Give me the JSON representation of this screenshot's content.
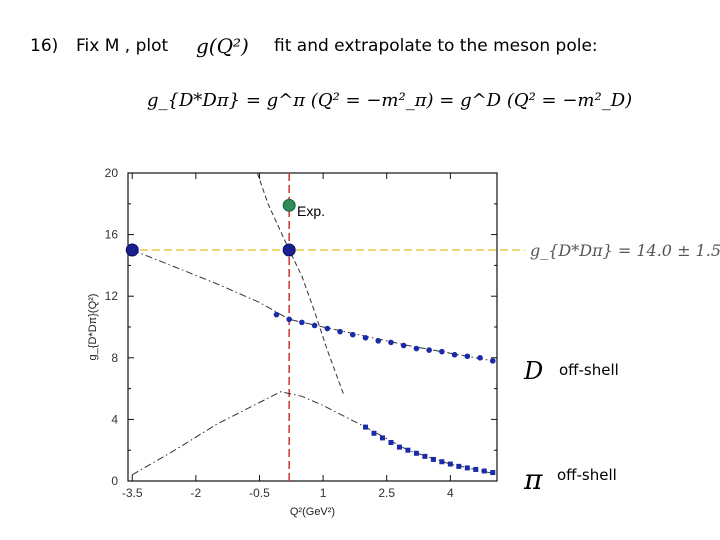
{
  "heading": {
    "number": "16)",
    "text_a": "Fix M , plot",
    "formula_g": "g(Q²)",
    "text_b": "fit  and  extrapolate to the meson pole:"
  },
  "equation": "g_{D*Dπ} = g^π (Q² = −m²_π) = g^D (Q² = −m²_D)",
  "result": "g_{D*Dπ} = 14.0 ± 1.5",
  "labels": {
    "exp": "Exp.",
    "d_symbol": "D",
    "d_offshell": "off-shell",
    "pi_symbol": "π",
    "pi_offshell": "off-shell"
  },
  "chart_data": {
    "type": "scatter",
    "xlabel": "Q²(GeV²)",
    "ylabel": "g_{D*Dπ}(Q²)",
    "xlim": [
      -3.6,
      5.1
    ],
    "ylim": [
      0,
      20
    ],
    "x_ticks": [
      -3.5,
      -2,
      -0.5,
      1,
      2.5,
      4
    ],
    "x_tick_labels": [
      "-3.5",
      "-2",
      "-0.5",
      "1",
      "2.5",
      "4"
    ],
    "y_ticks": [
      0,
      4,
      8,
      12,
      16,
      20
    ],
    "y_tick_labels": [
      "0",
      "4",
      "8",
      "12",
      "16",
      "20"
    ],
    "reference_lines": {
      "horizontal_y": 15.0,
      "vertical_x": 0.2
    },
    "series": [
      {
        "markers": "dots",
        "x": [
          -0.1,
          0.2,
          0.5,
          0.8,
          1.1,
          1.4,
          1.7,
          2.0,
          2.3,
          2.6,
          2.9,
          3.2,
          3.5,
          3.8,
          4.1,
          4.4,
          4.7,
          5.0
        ],
        "y": [
          10.8,
          10.5,
          10.3,
          10.1,
          9.9,
          9.7,
          9.5,
          9.3,
          9.1,
          9.0,
          8.8,
          8.6,
          8.5,
          8.4,
          8.2,
          8.1,
          8.0,
          7.8
        ]
      },
      {
        "markers": "squares",
        "x": [
          2.0,
          2.2,
          2.4,
          2.6,
          2.8,
          3.0,
          3.2,
          3.4,
          3.6,
          3.8,
          4.0,
          4.2,
          4.4,
          4.6,
          4.8,
          5.0
        ],
        "y": [
          3.5,
          3.1,
          2.8,
          2.5,
          2.2,
          2.0,
          1.8,
          1.6,
          1.4,
          1.25,
          1.1,
          0.95,
          0.85,
          0.75,
          0.65,
          0.55
        ]
      }
    ],
    "curves": [
      {
        "style": "dash-dot",
        "x": [
          -3.5,
          -2.5,
          -1.5,
          -0.5,
          0.2,
          1.0,
          2.0,
          3.0,
          4.0,
          5.0
        ],
        "y": [
          15.0,
          13.9,
          12.8,
          11.6,
          10.5,
          10.0,
          9.4,
          8.8,
          8.3,
          7.8
        ]
      },
      {
        "style": "dash-dot",
        "x": [
          -3.5,
          -2.5,
          -1.5,
          -0.5,
          0.0,
          0.5,
          1.0,
          1.5,
          2.0,
          3.0,
          4.0,
          5.0
        ],
        "y": [
          0.4,
          2.0,
          3.7,
          5.1,
          5.8,
          5.5,
          4.9,
          4.2,
          3.5,
          2.0,
          1.1,
          0.5
        ]
      },
      {
        "style": "dashed",
        "x": [
          -0.55,
          -0.3,
          0.0,
          0.2,
          0.5,
          0.8,
          1.1,
          1.5
        ],
        "y": [
          20.0,
          18.0,
          16.2,
          15.0,
          13.3,
          11.0,
          8.5,
          5.5
        ]
      }
    ],
    "highlight_points": [
      {
        "x": -3.5,
        "y": 15.0,
        "label": ""
      },
      {
        "x": 0.2,
        "y": 15.0,
        "label": ""
      },
      {
        "x": 0.2,
        "y": 17.9,
        "label": "Exp."
      }
    ]
  }
}
